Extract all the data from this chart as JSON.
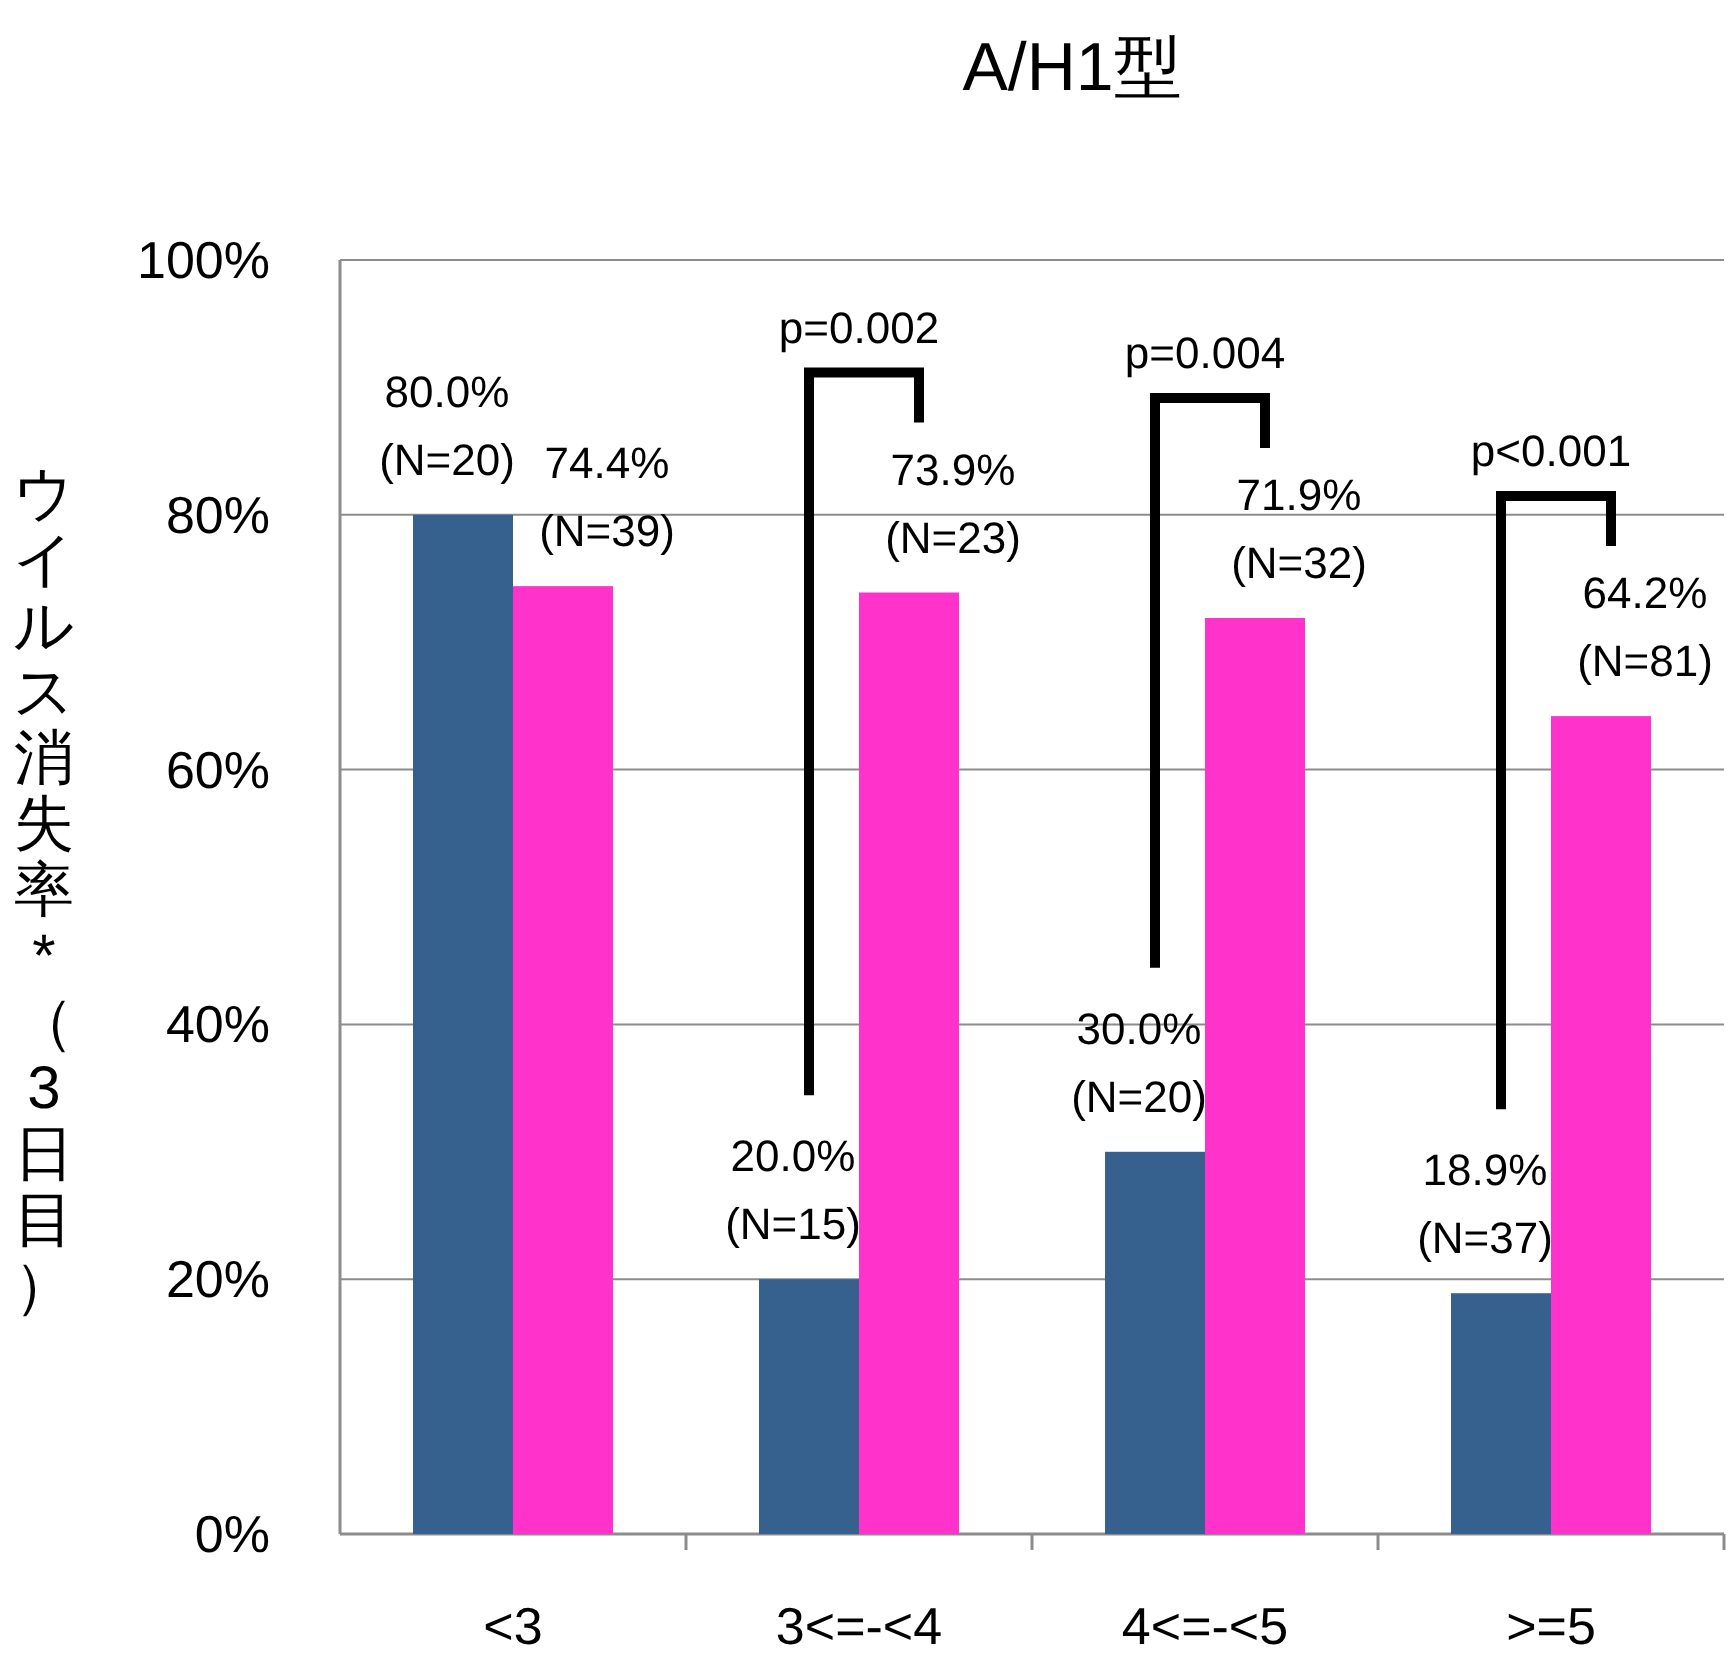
{
  "chart_data": {
    "type": "bar",
    "title": "A/H1型",
    "ylabel": "ウイルス消失率*（3日目）",
    "categories": [
      "<3",
      "3<=-<4",
      "4<=-<5",
      ">=5"
    ],
    "series": [
      {
        "color": "#36618f",
        "values": [
          80.0,
          20.0,
          30.0,
          18.9
        ],
        "value_labels": [
          "80.0%\n(N=20)",
          "20.0%\n(N=15)",
          "30.0%\n(N=20)",
          "18.9%\n(N=37)"
        ]
      },
      {
        "color": "#ff33cc",
        "values": [
          74.4,
          73.9,
          71.9,
          64.2
        ],
        "value_labels": [
          "74.4%\n(N=39)",
          "73.9%\n(N=23)",
          "71.9%\n(N=32)",
          "64.2%\n(N=81)"
        ]
      }
    ],
    "ylim": [
      0,
      100
    ],
    "yticks": [
      {
        "value": 0,
        "label": "0%"
      },
      {
        "value": 20,
        "label": "20%"
      },
      {
        "value": 40,
        "label": "40%"
      },
      {
        "value": 60,
        "label": "60%"
      },
      {
        "value": 80,
        "label": "80%"
      },
      {
        "value": 100,
        "label": "100%"
      }
    ],
    "grid": "y",
    "annotations": [
      "p=0.002",
      "p=0.004",
      "p<0.001"
    ]
  }
}
